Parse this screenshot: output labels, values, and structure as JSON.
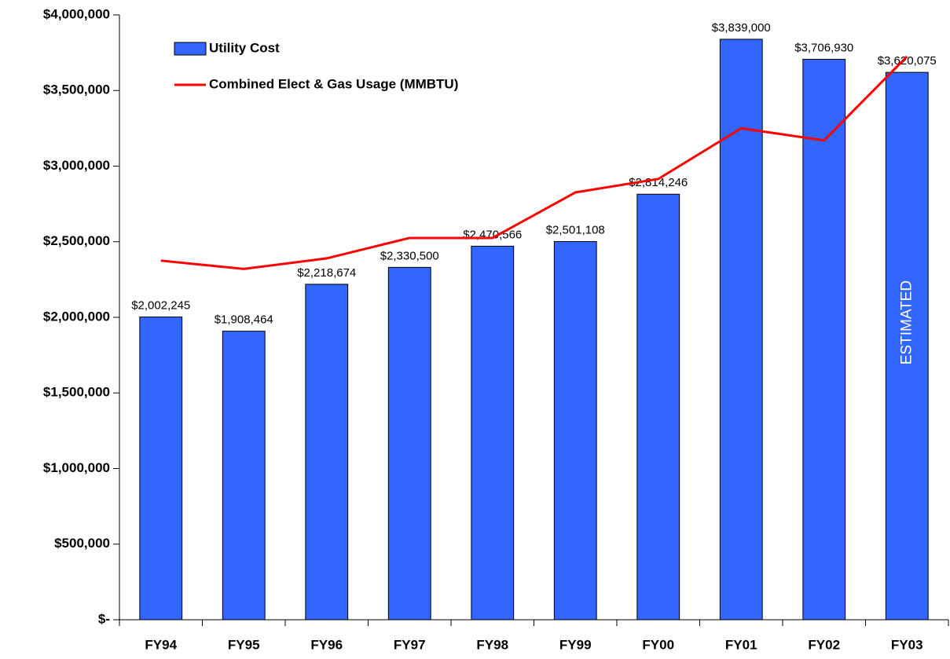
{
  "chart_data": {
    "type": "bar",
    "categories": [
      "FY94",
      "FY95",
      "FY96",
      "FY97",
      "FY98",
      "FY99",
      "FY00",
      "FY01",
      "FY02",
      "FY03"
    ],
    "series": [
      {
        "name": "Utility Cost",
        "type": "bar",
        "color": "#3366ff",
        "values": [
          2002245,
          1908464,
          2218674,
          2330500,
          2470566,
          2501108,
          2814246,
          3839000,
          3706930,
          3620075
        ],
        "value_labels": [
          "$2,002,245",
          "$1,908,464",
          "$2,218,674",
          "$2,330,500",
          "$2,470,566",
          "$2,501,108",
          "$2,814,246",
          "$3,839,000",
          "$3,706,930",
          "$3,620,075"
        ]
      },
      {
        "name": "Combined Elect & Gas Usage (MMBTU)",
        "type": "line",
        "color": "#ff0000",
        "values": [
          2375000,
          2320000,
          2390000,
          2525000,
          2525000,
          2826000,
          2915000,
          3250000,
          3170000,
          3725000
        ]
      }
    ],
    "ylim": [
      0,
      4000000
    ],
    "yticks": [
      {
        "value": 0,
        "label": "$-"
      },
      {
        "value": 500000,
        "label": "$500,000"
      },
      {
        "value": 1000000,
        "label": "$1,000,000"
      },
      {
        "value": 1500000,
        "label": "$1,500,000"
      },
      {
        "value": 2000000,
        "label": "$2,000,000"
      },
      {
        "value": 2500000,
        "label": "$2,500,000"
      },
      {
        "value": 3000000,
        "label": "$3,000,000"
      },
      {
        "value": 3500000,
        "label": "$3,500,000"
      },
      {
        "value": 4000000,
        "label": "$4,000,000"
      }
    ],
    "annotation": "ESTIMATED",
    "legend": "upper left"
  }
}
